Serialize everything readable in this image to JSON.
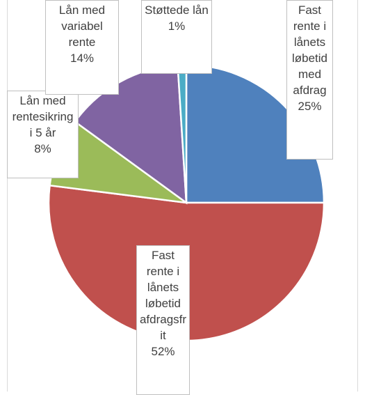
{
  "chart_data": {
    "type": "pie",
    "categories": [
      "Fast rente i lånets løbetid med afdrag",
      "Fast rente i lånets løbetid afdragsfrit",
      "Lån med rentesikring i 5 år",
      "Lån med variabel rente",
      "Støttede lån"
    ],
    "values": [
      25,
      52,
      8,
      14,
      1
    ],
    "value_labels": [
      "25%",
      "52%",
      "8%",
      "14%",
      "1%"
    ],
    "colors": [
      "#4f81bd",
      "#c0504d",
      "#9bbb59",
      "#8064a2",
      "#4bacc6"
    ]
  }
}
